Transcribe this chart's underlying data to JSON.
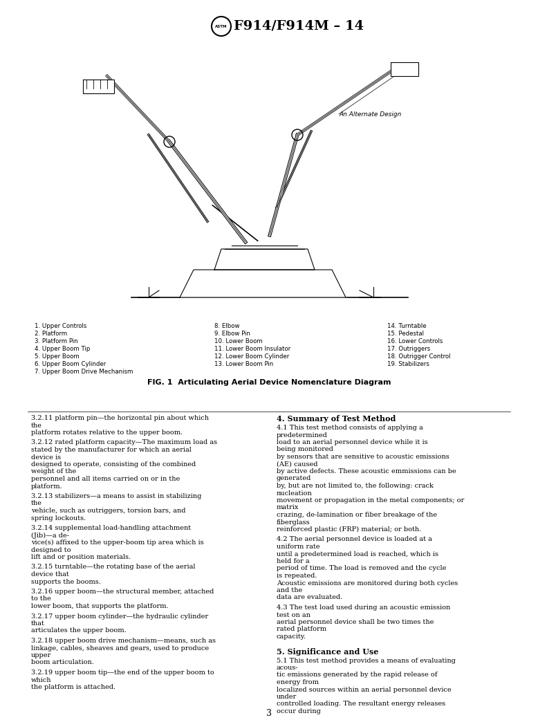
{
  "title": "F914/F914M – 14",
  "background_color": "#ffffff",
  "fig_caption": "FIG. 1  Articulating Aerial Device Nomenclature Diagram",
  "legend_col1": [
    "1. Upper Controls",
    "2. Platform",
    "3. Platform Pin",
    "4. Upper Boom Tip",
    "5. Upper Boom",
    "6. Upper Boom Cylinder",
    "7. Upper Boom Drive Mechanism"
  ],
  "legend_col2": [
    "8. Elbow",
    "9. Elbow Pin",
    "10. Lower Boom",
    "11. Lower Boom Insulator",
    "12. Lower Boom Cylinder",
    "13. Lower Boom Pin"
  ],
  "legend_col3": [
    "14. Turntable",
    "15. Pedestal",
    "16. Lower Controls",
    "17. Outriggers",
    "18. Outrigger Control",
    "19. Stabilizers"
  ],
  "section4_title": "4. Summary of Test Method",
  "section4_p1": "4.1 This test method consists of applying a predetermined\nload to an aerial personnel device while it is being monitored\nby sensors that are sensitive to acoustic emissions (AE) caused\nby active defects. These acoustic emmissions can be generated\nby, but are not limited to, the following: crack nucleation\nmovement or propagation in the metal components; or matrix\ncrazing, de-lamination or fiber breakage of the fiberglass\nreinforced plastic (FRP) material; or both.",
  "section4_p2": "4.2 The aerial personnel device is loaded at a uniform rate\nuntil a predetermined load is reached, which is held for a\nperiod of time. The load is removed and the cycle is repeated.\nAcoustic emissions are monitored during both cycles and the\ndata are evaluated.",
  "section4_p3": "4.3 The test load used during an acoustic emission test on an\naerial personnel device shall be two times the rated platform\ncapacity.",
  "section5_title": "5. Significance and Use",
  "section5_p1": "5.1 This test method provides a means of evaluating acous-\ntic emissions generated by the rapid release of energy from\nlocalized sources within an aerial personnel device under\ncontrolled loading. The resultant energy releases occur during",
  "section321_text": "3.2.11 platform pin—the horizontal pin about which the\nplatform rotates relative to the upper boom.",
  "section322_text": "3.2.12 rated platform capacity—The maximum load as\nstated by the manufacturer for which an aerial device is\ndesigned to operate, consisting of the combined weight of the\npersonnel and all items carried on or in the platform.",
  "section323_text": "3.2.13 stabilizers—a means to assist in stabilizing the\nvehicle, such as outriggers, torsion bars, and spring lockouts.",
  "section324_text": "3.2.14 supplemental load-handling attachment (Jib)—a de-\nvice(s) affixed to the upper-boom tip area which is designed to\nlift and or position materials.",
  "section325_text": "3.2.15 turntable—the rotating base of the aerial device that\nsupports the booms.",
  "section326_text": "3.2.16 upper boom—the structural member, attached to the\nlower boom, that supports the platform.",
  "section327_text": "3.2.17 upper boom cylinder—the hydraulic cylinder that\narticulates the upper boom.",
  "section328_text": "3.2.18 upper boom drive mechanism—means, such as\nlinkage, cables, sheaves and gears, used to produce upper\nboom articulation.",
  "section329_text": "3.2.19 upper boom tip—the end of the upper boom to which\nthe platform is attached.",
  "page_number": "3"
}
